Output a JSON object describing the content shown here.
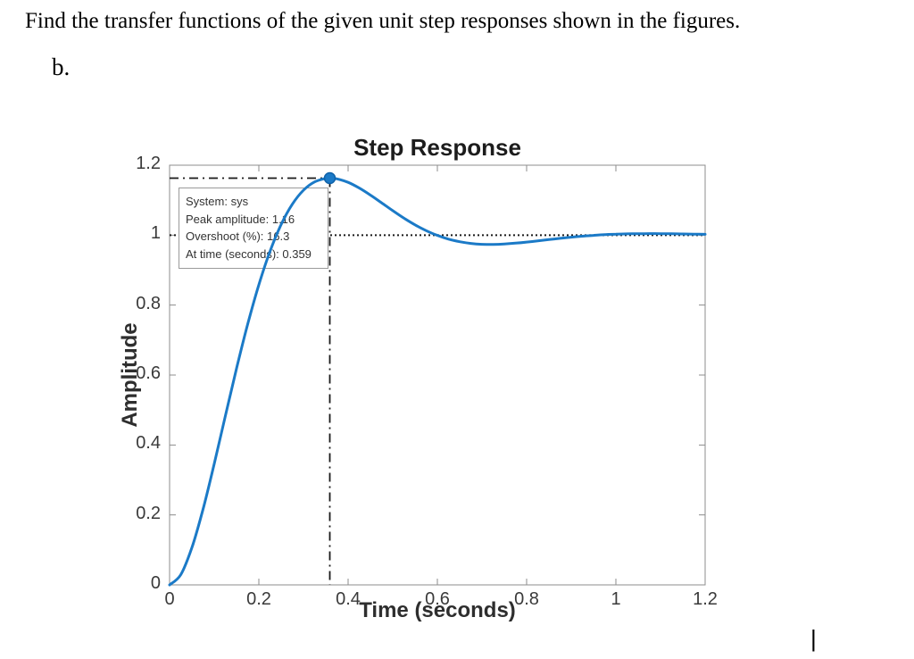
{
  "page": {
    "question": "Find the transfer functions of the given unit step responses shown in the figures.",
    "part_label": "b.",
    "cursor": "|"
  },
  "chart_data": {
    "type": "line",
    "title": "Step Response",
    "xlabel": "Time (seconds)",
    "ylabel": "Amplitude",
    "xlim": [
      0,
      1.2
    ],
    "ylim": [
      0,
      1.2
    ],
    "x_ticks": [
      0,
      0.2,
      0.4,
      0.6,
      0.8,
      1,
      1.2
    ],
    "y_ticks": [
      0,
      0.2,
      0.4,
      0.6,
      0.8,
      1,
      1.2
    ],
    "x_tick_labels": [
      "0",
      "0.2",
      "0.4",
      "0.6",
      "0.8",
      "1",
      "1.2"
    ],
    "y_tick_labels": [
      "0",
      "0.2",
      "0.4",
      "0.6",
      "0.8",
      "1",
      "1.2"
    ],
    "grid": false,
    "legend": "none",
    "line_color": "#1b7ac7",
    "marker_edge_color": "#0f62a9",
    "axis_color": "#8c8c8c",
    "annotation_color": "#1a1a1a",
    "steady_state": 1,
    "peak": {
      "time": 0.359,
      "amplitude": 1.163,
      "overshoot_pct": 16.3
    },
    "annotation": {
      "lines": [
        "System: sys",
        "Peak amplitude: 1.16",
        "Overshoot (%): 16.3",
        "At time (seconds): 0.359"
      ]
    },
    "series": [
      {
        "name": "sys",
        "x": [
          0,
          0.025,
          0.05,
          0.075,
          0.1,
          0.125,
          0.15,
          0.175,
          0.2,
          0.225,
          0.25,
          0.275,
          0.3,
          0.325,
          0.35,
          0.359,
          0.375,
          0.4,
          0.425,
          0.45,
          0.475,
          0.5,
          0.525,
          0.55,
          0.575,
          0.6,
          0.625,
          0.65,
          0.675,
          0.7,
          0.725,
          0.75,
          0.775,
          0.8,
          0.825,
          0.85,
          0.875,
          0.9,
          0.925,
          0.95,
          0.975,
          1,
          1.025,
          1.05,
          1.075,
          1.1,
          1.125,
          1.15,
          1.175,
          1.2
        ],
        "y": [
          0,
          0.0292,
          0.1064,
          0.2164,
          0.346,
          0.4832,
          0.6188,
          0.7455,
          0.8582,
          0.9537,
          1.0305,
          1.0884,
          1.1284,
          1.1523,
          1.1624,
          1.163,
          1.161,
          1.1509,
          1.1347,
          1.1145,
          1.0924,
          1.07,
          1.0487,
          1.0294,
          1.0128,
          0.9992,
          0.9886,
          0.9811,
          0.9763,
          0.9739,
          0.9735,
          0.9747,
          0.977,
          0.9801,
          0.9836,
          0.9873,
          0.9908,
          0.9941,
          0.997,
          0.9994,
          1.0013,
          1.0027,
          1.0036,
          1.0041,
          1.0043,
          1.0042,
          1.0039,
          1.0034,
          1.0029,
          1.0023
        ]
      }
    ]
  }
}
